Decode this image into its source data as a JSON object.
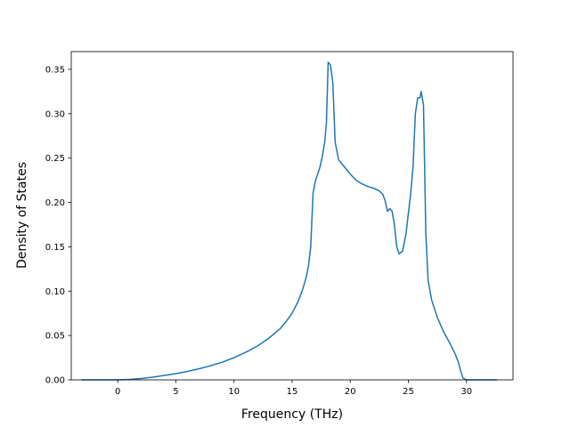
{
  "chart_data": {
    "type": "line",
    "title": "",
    "xlabel": "Frequency (THz)",
    "ylabel": "Density of States",
    "xlim": [
      -4.0,
      34.0
    ],
    "ylim": [
      0.0,
      0.37
    ],
    "grid": false,
    "legend": "none",
    "line_color": "#1f77b4",
    "xticks": [
      0,
      5,
      10,
      15,
      20,
      25,
      30
    ],
    "xtick_labels": [
      "0",
      "5",
      "10",
      "15",
      "20",
      "25",
      "30"
    ],
    "yticks": [
      0.0,
      0.05,
      0.1,
      0.15,
      0.2,
      0.25,
      0.3,
      0.35
    ],
    "ytick_labels": [
      "0.00",
      "0.05",
      "0.10",
      "0.15",
      "0.20",
      "0.25",
      "0.30",
      "0.35"
    ],
    "series": [
      {
        "x": [
          -3.1,
          -1.0,
          0.0,
          1.0,
          2.0,
          3.0,
          4.0,
          5.0,
          6.0,
          7.0,
          8.0,
          9.0,
          10.0,
          11.0,
          12.0,
          13.0,
          14.0,
          14.5,
          15.0,
          15.5,
          15.8,
          16.0,
          16.2,
          16.4,
          16.6,
          16.8,
          17.0,
          17.2,
          17.4,
          17.6,
          17.8,
          17.95,
          18.1,
          18.3,
          18.5,
          18.7,
          19.0,
          19.5,
          20.0,
          20.5,
          21.0,
          21.5,
          22.0,
          22.5,
          22.8,
          23.0,
          23.2,
          23.4,
          23.6,
          23.8,
          24.0,
          24.2,
          24.5,
          24.8,
          25.0,
          25.2,
          25.4,
          25.6,
          25.8,
          26.0,
          26.1,
          26.3,
          26.5,
          26.7,
          27.0,
          27.5,
          28.0,
          28.5,
          29.0,
          29.3,
          29.5,
          29.7,
          30.0,
          32.6
        ],
        "y": [
          0.0,
          0.0,
          0.0,
          0.0005,
          0.0015,
          0.003,
          0.005,
          0.007,
          0.0095,
          0.0125,
          0.016,
          0.02,
          0.025,
          0.031,
          0.038,
          0.047,
          0.058,
          0.066,
          0.075,
          0.088,
          0.098,
          0.106,
          0.115,
          0.128,
          0.15,
          0.21,
          0.224,
          0.232,
          0.24,
          0.252,
          0.268,
          0.29,
          0.358,
          0.355,
          0.335,
          0.268,
          0.248,
          0.24,
          0.232,
          0.225,
          0.221,
          0.218,
          0.216,
          0.213,
          0.209,
          0.202,
          0.19,
          0.193,
          0.19,
          0.175,
          0.15,
          0.142,
          0.145,
          0.165,
          0.188,
          0.21,
          0.24,
          0.3,
          0.318,
          0.318,
          0.325,
          0.31,
          0.165,
          0.112,
          0.09,
          0.07,
          0.055,
          0.043,
          0.03,
          0.02,
          0.01,
          0.002,
          0.0,
          0.0
        ]
      }
    ]
  }
}
